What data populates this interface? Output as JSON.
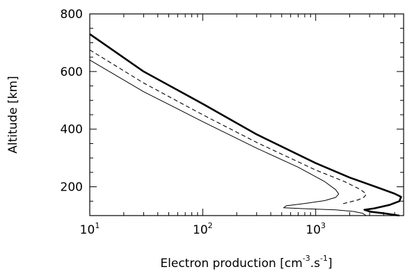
{
  "chart_data": {
    "type": "line",
    "xscale": "log",
    "xlim": [
      10,
      6000
    ],
    "ylim": [
      100,
      800
    ],
    "xlabel": {
      "prefix": "Electron production [cm",
      "exp1": "-3",
      "middle": ".s",
      "exp2": "-1",
      "suffix": "]"
    },
    "ylabel": "Altitude [km]",
    "x_ticks": [
      {
        "value": 10,
        "base": "10",
        "exp": "1"
      },
      {
        "value": 100,
        "base": "10",
        "exp": "2"
      },
      {
        "value": 1000,
        "base": "10",
        "exp": "3"
      }
    ],
    "y_ticks": [
      {
        "value": 200,
        "label": "200"
      },
      {
        "value": 400,
        "label": "400"
      },
      {
        "value": 600,
        "label": "600"
      },
      {
        "value": 800,
        "label": "800"
      }
    ],
    "series": [
      {
        "style": "thick-solid",
        "points": [
          [
            10,
            730
          ],
          [
            30,
            600
          ],
          [
            100,
            488
          ],
          [
            300,
            382
          ],
          [
            1000,
            282
          ],
          [
            2000,
            232
          ],
          [
            3500,
            198
          ],
          [
            5000,
            176
          ],
          [
            5700,
            165
          ],
          [
            5500,
            150
          ],
          [
            4500,
            137
          ],
          [
            3300,
            125
          ],
          [
            2700,
            120
          ],
          [
            3100,
            113
          ],
          [
            4000,
            108
          ],
          [
            5500,
            100
          ]
        ]
      },
      {
        "style": "dashed",
        "points": [
          [
            10,
            675
          ],
          [
            30,
            560
          ],
          [
            100,
            450
          ],
          [
            300,
            354
          ],
          [
            1000,
            258
          ],
          [
            1800,
            218
          ],
          [
            2500,
            190
          ],
          [
            2800,
            175
          ],
          [
            2700,
            165
          ],
          [
            2400,
            155
          ],
          [
            2000,
            147
          ],
          [
            1700,
            140
          ]
        ]
      },
      {
        "style": "thin-solid",
        "points": [
          [
            10,
            640
          ],
          [
            30,
            530
          ],
          [
            100,
            426
          ],
          [
            300,
            334
          ],
          [
            700,
            268
          ],
          [
            1200,
            218
          ],
          [
            1500,
            190
          ],
          [
            1600,
            175
          ],
          [
            1500,
            163
          ],
          [
            1200,
            152
          ],
          [
            800,
            142
          ],
          [
            550,
            134
          ],
          [
            520,
            127
          ],
          [
            800,
            124
          ],
          [
            1500,
            120
          ],
          [
            2200,
            114
          ],
          [
            2600,
            108
          ],
          [
            2800,
            100
          ]
        ]
      }
    ]
  }
}
